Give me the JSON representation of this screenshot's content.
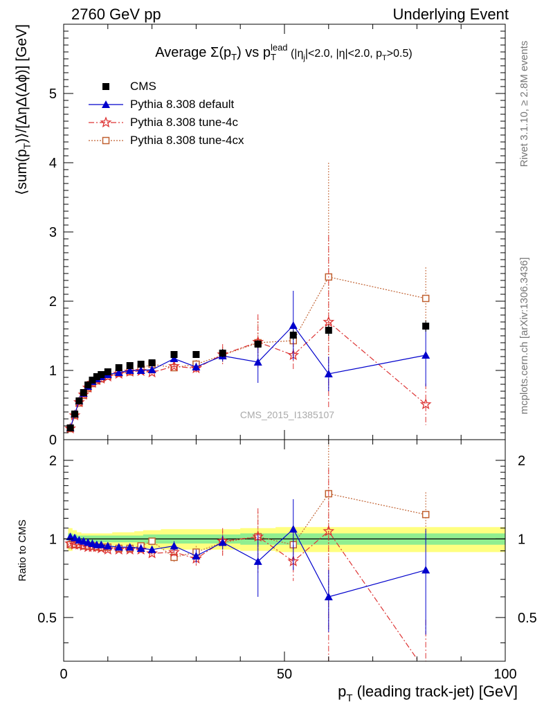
{
  "header": {
    "left": "2760 GeV pp",
    "right": "Underlying Event"
  },
  "side_text": {
    "rivet": "Rivet 3.1.10, ≥ 2.8M events",
    "source": "mcplots.cern.ch [arXiv:1306.3436]"
  },
  "watermark": "CMS_2015_I1385107",
  "chart_data": [
    {
      "type": "scatter",
      "title": {
        "prefix": "Average ",
        "sigma": "Σ(p",
        "sub1": "T",
        "mid": ") vs p",
        "sub2": "T",
        "sup2": "lead",
        "cuts": " (|η",
        "sub3": "j",
        "cuts2": "|<2.0, |η|<2.0, p",
        "sub4": "T",
        "cuts3": ">0.5)"
      },
      "ylabel": "⟨sum(p_T)⟩/[ΔηΔ(Δϕ)] [GeV]",
      "ylabel_parts": {
        "a": "⟨sum(p",
        "sub": "T",
        "b": ")⟩/[ΔηΔ(Δϕ)] [GeV]"
      },
      "xlim": [
        0,
        100
      ],
      "ylim": [
        0,
        6
      ],
      "yticks": [
        0,
        1,
        2,
        3,
        4,
        5
      ],
      "legend_position": "top-left",
      "series": [
        {
          "name": "CMS",
          "color": "#000000",
          "marker": "square-filled",
          "x": [
            1.5,
            2.5,
            3.5,
            4.5,
            5.5,
            6.5,
            7.5,
            8.5,
            10.0,
            12.5,
            15.0,
            17.5,
            20.0,
            25.0,
            30.0,
            36.0,
            44.0,
            52.0,
            60.0,
            82.0
          ],
          "y": [
            0.17,
            0.37,
            0.56,
            0.68,
            0.79,
            0.86,
            0.91,
            0.94,
            0.98,
            1.04,
            1.07,
            1.09,
            1.11,
            1.23,
            1.23,
            1.25,
            1.38,
            1.51,
            1.58,
            1.64
          ],
          "yerr": [
            0.01,
            0.02,
            0.02,
            0.02,
            0.02,
            0.02,
            0.02,
            0.02,
            0.02,
            0.02,
            0.03,
            0.04,
            0.04,
            0.05,
            0.05,
            0.06,
            0.06,
            0.07,
            0.08,
            0.08
          ]
        },
        {
          "name": "Pythia 8.308 default",
          "color": "#0000cc",
          "marker": "triangle",
          "line": "solid",
          "x": [
            1.5,
            2.5,
            3.5,
            4.5,
            5.5,
            6.5,
            7.5,
            8.5,
            10.0,
            12.5,
            15.0,
            17.5,
            20.0,
            25.0,
            30.0,
            36.0,
            44.0,
            52.0,
            60.0,
            82.0
          ],
          "y": [
            0.17,
            0.37,
            0.56,
            0.67,
            0.77,
            0.84,
            0.88,
            0.91,
            0.94,
            0.97,
            1.0,
            1.0,
            1.01,
            1.17,
            1.05,
            1.21,
            1.12,
            1.65,
            0.95,
            1.22
          ],
          "yerr": [
            0.01,
            0.01,
            0.01,
            0.01,
            0.01,
            0.01,
            0.02,
            0.02,
            0.02,
            0.03,
            0.03,
            0.04,
            0.04,
            0.05,
            0.06,
            0.08,
            0.3,
            0.5,
            0.25,
            0.45
          ]
        },
        {
          "name": "Pythia 8.308 tune-4c",
          "color": "#dd3333",
          "marker": "star",
          "line": "dashdot",
          "x": [
            1.5,
            2.5,
            3.5,
            4.5,
            5.5,
            6.5,
            7.5,
            8.5,
            10.0,
            12.5,
            15.0,
            17.5,
            20.0,
            25.0,
            30.0,
            36.0,
            44.0,
            52.0,
            60.0,
            82.0
          ],
          "y": [
            0.16,
            0.35,
            0.54,
            0.65,
            0.75,
            0.82,
            0.86,
            0.88,
            0.91,
            0.95,
            0.98,
            0.99,
            0.97,
            1.06,
            1.03,
            1.23,
            1.41,
            1.22,
            1.7,
            0.51
          ],
          "yerr": [
            0.01,
            0.01,
            0.01,
            0.01,
            0.01,
            0.02,
            0.02,
            0.02,
            0.02,
            0.03,
            0.03,
            0.04,
            0.04,
            0.05,
            0.07,
            0.15,
            0.4,
            0.2,
            1.25,
            0.3
          ]
        },
        {
          "name": "Pythia 8.308 tune-4cx",
          "color": "#c06030",
          "marker": "square-open",
          "line": "dotted",
          "x": [
            1.5,
            2.5,
            3.5,
            4.5,
            5.5,
            6.5,
            7.5,
            8.5,
            10.0,
            12.5,
            15.0,
            17.5,
            20.0,
            25.0,
            30.0,
            36.0,
            44.0,
            52.0,
            60.0,
            82.0
          ],
          "y": [
            0.16,
            0.35,
            0.53,
            0.64,
            0.74,
            0.81,
            0.85,
            0.88,
            0.92,
            0.96,
            0.98,
            1.03,
            1.09,
            1.04,
            1.09,
            1.22,
            1.4,
            1.43,
            2.35,
            2.04
          ],
          "yerr": [
            0.01,
            0.01,
            0.01,
            0.01,
            0.01,
            0.02,
            0.02,
            0.02,
            0.02,
            0.03,
            0.03,
            0.04,
            0.04,
            0.05,
            0.06,
            0.12,
            0.35,
            0.25,
            1.65,
            0.45
          ]
        }
      ]
    },
    {
      "type": "scatter",
      "ylabel": "Ratio to CMS",
      "xlabel": "p_T (leading track-jet) [GeV]",
      "xlabel_parts": {
        "a": "p",
        "sub": "T",
        "b": " (leading track-jet) [GeV]"
      },
      "xlim": [
        0,
        100
      ],
      "ylim": [
        0.34,
        2.4
      ],
      "xticks": [
        0,
        50,
        100
      ],
      "yticks": [
        0.5,
        1,
        2
      ],
      "reference_line": 1,
      "bands": {
        "yellow": {
          "color": "#ffff80",
          "x": [
            1,
            2,
            3,
            4,
            5,
            6,
            7,
            8,
            9,
            11,
            14,
            16,
            18,
            22,
            28,
            32,
            40,
            48,
            56,
            64,
            100
          ],
          "half_width": [
            0.1,
            0.08,
            0.06,
            0.05,
            0.05,
            0.05,
            0.05,
            0.05,
            0.05,
            0.06,
            0.06,
            0.07,
            0.08,
            0.09,
            0.09,
            0.09,
            0.1,
            0.11,
            0.11,
            0.11,
            0.11
          ]
        },
        "green": {
          "color": "#90ee90",
          "x": [
            1,
            2,
            3,
            4,
            5,
            6,
            7,
            8,
            9,
            11,
            14,
            16,
            18,
            22,
            28,
            32,
            40,
            48,
            56,
            64,
            100
          ],
          "half_width": [
            0.05,
            0.04,
            0.03,
            0.03,
            0.03,
            0.03,
            0.03,
            0.03,
            0.03,
            0.03,
            0.03,
            0.03,
            0.04,
            0.04,
            0.04,
            0.04,
            0.05,
            0.05,
            0.05,
            0.05,
            0.05
          ]
        }
      },
      "series": [
        {
          "name": "Pythia 8.308 default",
          "color": "#0000cc",
          "marker": "triangle",
          "line": "solid",
          "x": [
            1.5,
            2.5,
            3.5,
            4.5,
            5.5,
            6.5,
            7.5,
            8.5,
            10.0,
            12.5,
            15.0,
            17.5,
            20.0,
            25.0,
            30.0,
            36.0,
            44.0,
            52.0,
            60.0,
            82.0
          ],
          "y": [
            1.02,
            1.01,
            0.99,
            0.98,
            0.97,
            0.96,
            0.95,
            0.95,
            0.94,
            0.93,
            0.93,
            0.92,
            0.91,
            0.94,
            0.86,
            0.97,
            0.82,
            1.09,
            0.6,
            0.76
          ],
          "yerr": [
            0.01,
            0.01,
            0.01,
            0.01,
            0.01,
            0.01,
            0.01,
            0.01,
            0.01,
            0.02,
            0.02,
            0.03,
            0.03,
            0.04,
            0.05,
            0.06,
            0.22,
            0.33,
            0.16,
            0.33
          ]
        },
        {
          "name": "Pythia 8.308 tune-4c",
          "color": "#dd3333",
          "marker": "star",
          "line": "dashdot",
          "x": [
            1.5,
            2.5,
            3.5,
            4.5,
            5.5,
            6.5,
            7.5,
            8.5,
            10.0,
            12.5,
            15.0,
            17.5,
            20.0,
            25.0,
            30.0,
            36.0,
            44.0,
            52.0,
            60.0,
            82.0
          ],
          "y": [
            0.96,
            0.95,
            0.95,
            0.94,
            0.93,
            0.93,
            0.93,
            0.92,
            0.91,
            0.91,
            0.91,
            0.91,
            0.88,
            0.89,
            0.84,
            0.98,
            1.02,
            0.82,
            1.07,
            0.31
          ],
          "yerr": [
            0.01,
            0.01,
            0.01,
            0.01,
            0.01,
            0.01,
            0.01,
            0.01,
            0.02,
            0.02,
            0.02,
            0.03,
            0.03,
            0.04,
            0.05,
            0.12,
            0.29,
            0.13,
            0.79,
            0.18
          ]
        },
        {
          "name": "Pythia 8.308 tune-4cx",
          "color": "#c06030",
          "marker": "square-open",
          "line": "dotted",
          "x": [
            1.5,
            2.5,
            3.5,
            4.5,
            5.5,
            6.5,
            7.5,
            8.5,
            10.0,
            12.5,
            15.0,
            17.5,
            20.0,
            25.0,
            30.0,
            36.0,
            44.0,
            52.0,
            60.0,
            82.0
          ],
          "y": [
            0.95,
            0.95,
            0.95,
            0.94,
            0.94,
            0.94,
            0.93,
            0.93,
            0.93,
            0.92,
            0.92,
            0.94,
            0.98,
            0.85,
            0.89,
            0.97,
            1.02,
            0.95,
            1.49,
            1.24
          ],
          "yerr": [
            0.01,
            0.01,
            0.01,
            0.01,
            0.01,
            0.01,
            0.01,
            0.01,
            0.02,
            0.02,
            0.02,
            0.03,
            0.03,
            0.04,
            0.05,
            0.1,
            0.25,
            0.17,
            1.04,
            0.27
          ]
        }
      ]
    }
  ]
}
